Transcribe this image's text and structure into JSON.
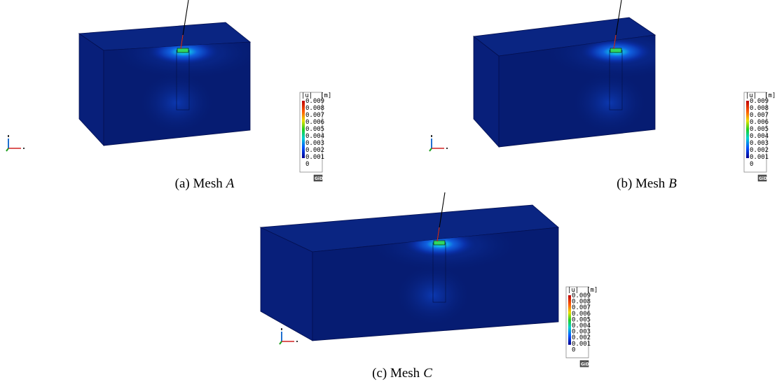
{
  "panels": [
    {
      "caption": {
        "label": "(a) Mesh",
        "variable": "A"
      },
      "legend": {
        "title": "|u|  [m]",
        "labels": [
          0.009,
          0.008,
          0.007,
          0.006,
          0.005,
          0.004,
          0.003,
          0.002,
          0.001,
          0
        ]
      },
      "logo": "GiD"
    },
    {
      "caption": {
        "label": "(b) Mesh",
        "variable": "B"
      },
      "legend": {
        "title": "|u|  [m]",
        "labels": [
          0.009,
          0.008,
          0.007,
          0.006,
          0.005,
          0.004,
          0.003,
          0.002,
          0.001,
          0
        ]
      },
      "logo": "GiD"
    },
    {
      "caption": {
        "label": "(c) Mesh",
        "variable": "C"
      },
      "legend": {
        "title": "|u|  [m]",
        "labels": [
          0.009,
          0.008,
          0.007,
          0.006,
          0.005,
          0.004,
          0.003,
          0.002,
          0.001,
          0
        ]
      },
      "logo": "GiD"
    }
  ]
}
